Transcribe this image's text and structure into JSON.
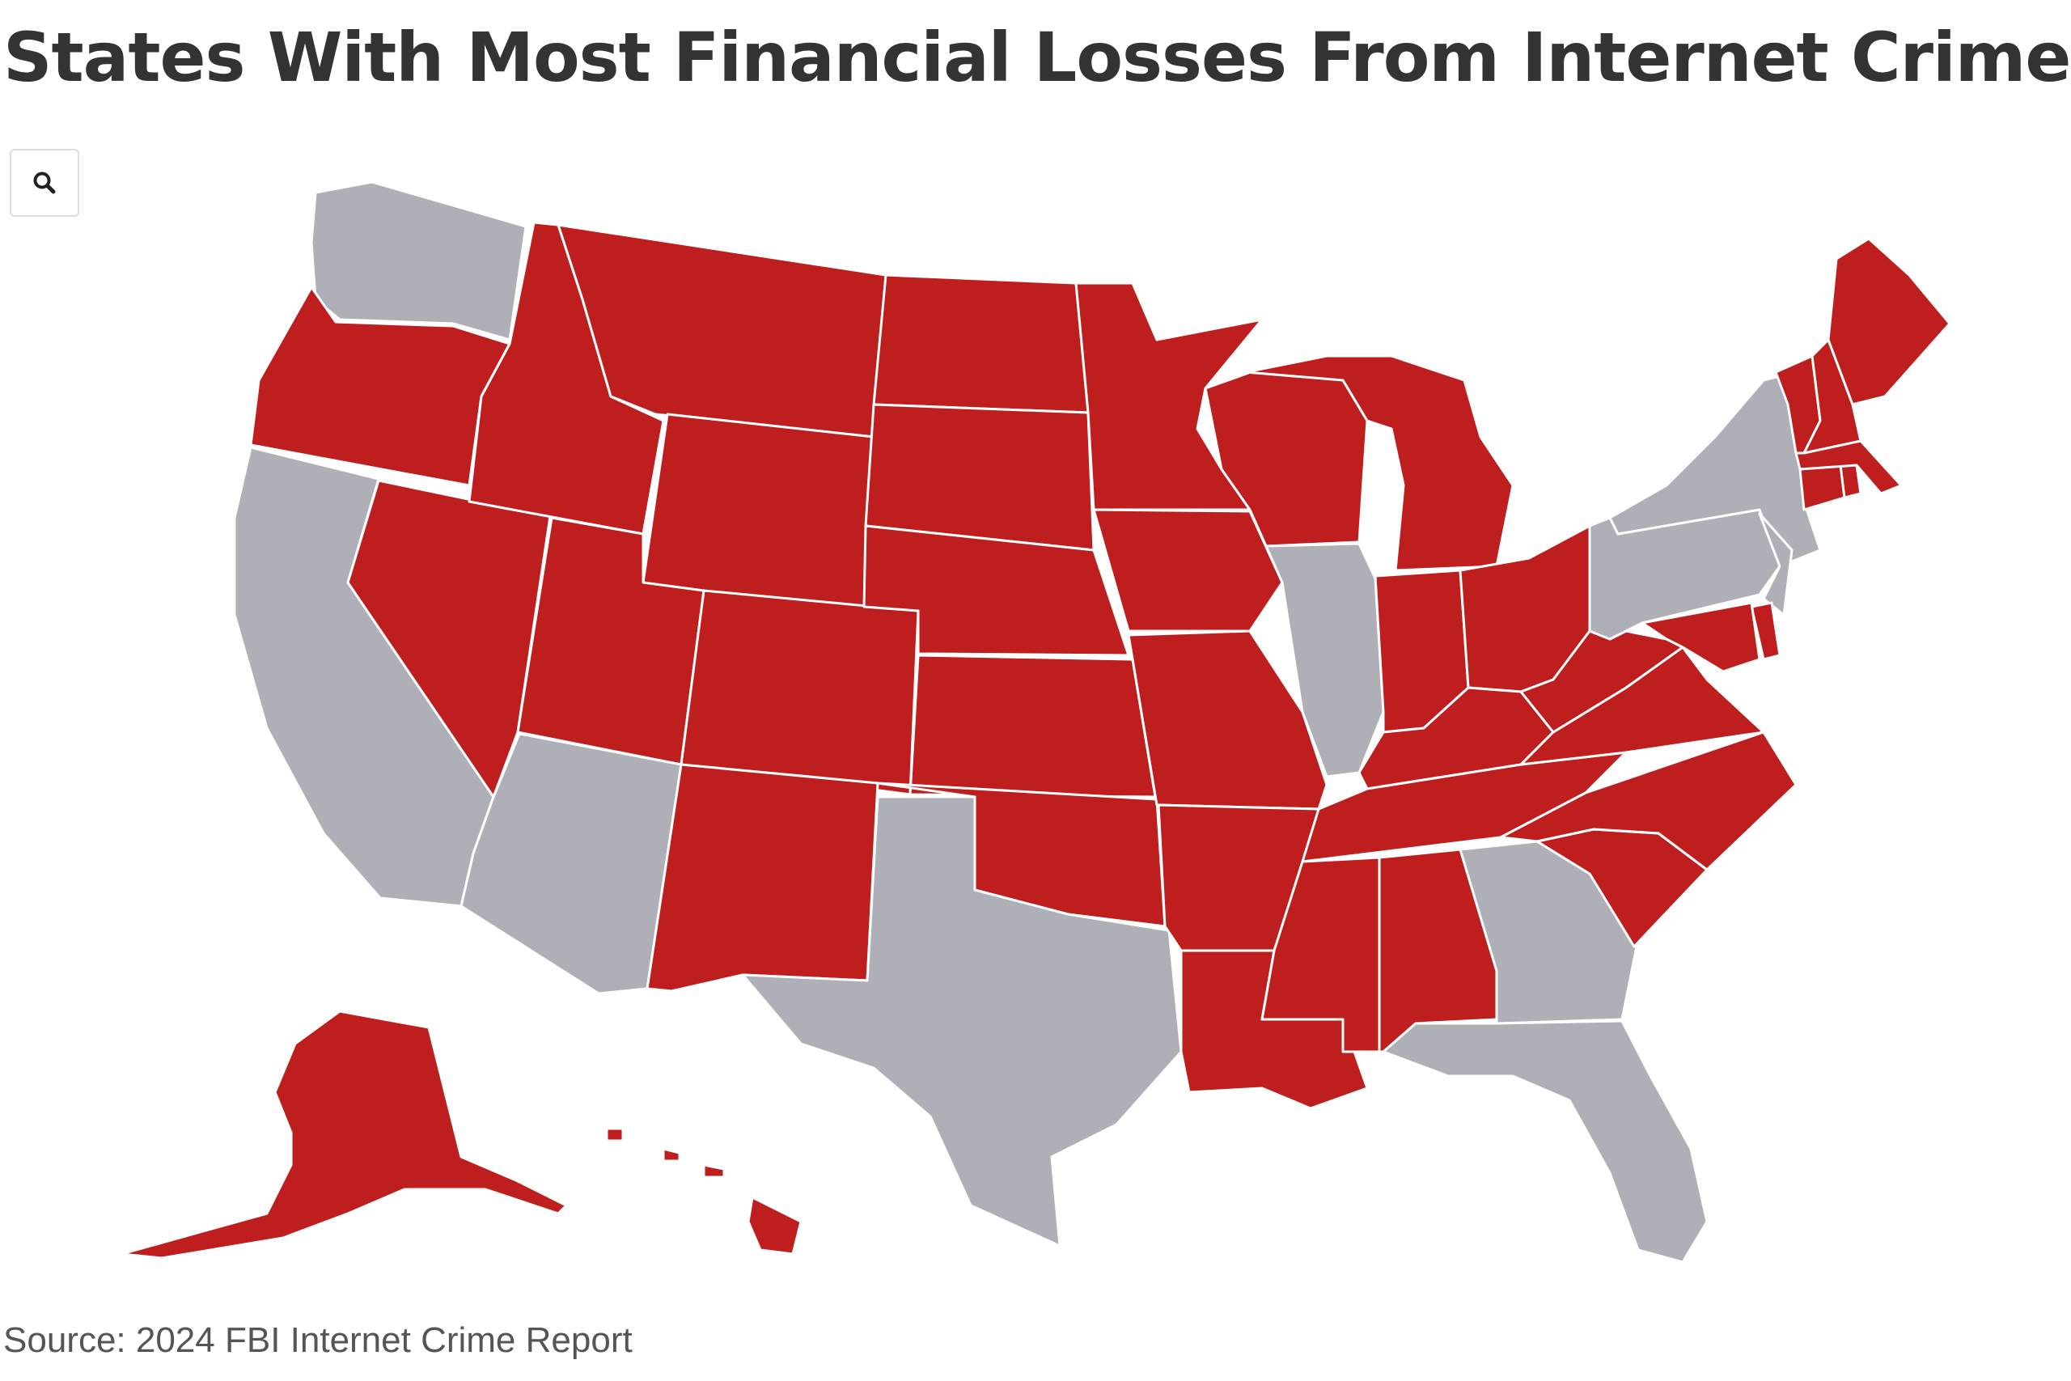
{
  "title": "States With Most Financial Losses From Internet Crime",
  "source": "Source: 2024 FBI Internet Crime Report",
  "search_icon": "search-icon",
  "colors": {
    "highlighted": "#BF1E1E",
    "not_highlighted": "#AFAFB7",
    "background": "#FFFFFF",
    "state_border": "#FFFFFF"
  },
  "legend_visible": false,
  "states": [
    {
      "abbr": "WA",
      "highlighted": false
    },
    {
      "abbr": "OR",
      "highlighted": true
    },
    {
      "abbr": "CA",
      "highlighted": false
    },
    {
      "abbr": "NV",
      "highlighted": true
    },
    {
      "abbr": "ID",
      "highlighted": true
    },
    {
      "abbr": "MT",
      "highlighted": true
    },
    {
      "abbr": "WY",
      "highlighted": true
    },
    {
      "abbr": "UT",
      "highlighted": true
    },
    {
      "abbr": "AZ",
      "highlighted": false
    },
    {
      "abbr": "CO",
      "highlighted": true
    },
    {
      "abbr": "NM",
      "highlighted": true
    },
    {
      "abbr": "ND",
      "highlighted": true
    },
    {
      "abbr": "SD",
      "highlighted": true
    },
    {
      "abbr": "NE",
      "highlighted": true
    },
    {
      "abbr": "KS",
      "highlighted": true
    },
    {
      "abbr": "OK",
      "highlighted": true
    },
    {
      "abbr": "TX",
      "highlighted": false
    },
    {
      "abbr": "MN",
      "highlighted": true
    },
    {
      "abbr": "IA",
      "highlighted": true
    },
    {
      "abbr": "MO",
      "highlighted": true
    },
    {
      "abbr": "AR",
      "highlighted": true
    },
    {
      "abbr": "LA",
      "highlighted": true
    },
    {
      "abbr": "WI",
      "highlighted": true
    },
    {
      "abbr": "IL",
      "highlighted": false
    },
    {
      "abbr": "MI",
      "highlighted": true
    },
    {
      "abbr": "IN",
      "highlighted": true
    },
    {
      "abbr": "OH",
      "highlighted": true
    },
    {
      "abbr": "KY",
      "highlighted": true
    },
    {
      "abbr": "TN",
      "highlighted": true
    },
    {
      "abbr": "MS",
      "highlighted": true
    },
    {
      "abbr": "AL",
      "highlighted": true
    },
    {
      "abbr": "GA",
      "highlighted": false
    },
    {
      "abbr": "FL",
      "highlighted": false
    },
    {
      "abbr": "SC",
      "highlighted": true
    },
    {
      "abbr": "NC",
      "highlighted": true
    },
    {
      "abbr": "VA",
      "highlighted": true
    },
    {
      "abbr": "WV",
      "highlighted": true
    },
    {
      "abbr": "PA",
      "highlighted": false
    },
    {
      "abbr": "NY",
      "highlighted": false
    },
    {
      "abbr": "NJ",
      "highlighted": false
    },
    {
      "abbr": "DE",
      "highlighted": true
    },
    {
      "abbr": "MD",
      "highlighted": true
    },
    {
      "abbr": "CT",
      "highlighted": true
    },
    {
      "abbr": "RI",
      "highlighted": true
    },
    {
      "abbr": "MA",
      "highlighted": true
    },
    {
      "abbr": "VT",
      "highlighted": true
    },
    {
      "abbr": "NH",
      "highlighted": true
    },
    {
      "abbr": "ME",
      "highlighted": true
    },
    {
      "abbr": "AK",
      "highlighted": true
    },
    {
      "abbr": "HI",
      "highlighted": true
    }
  ]
}
